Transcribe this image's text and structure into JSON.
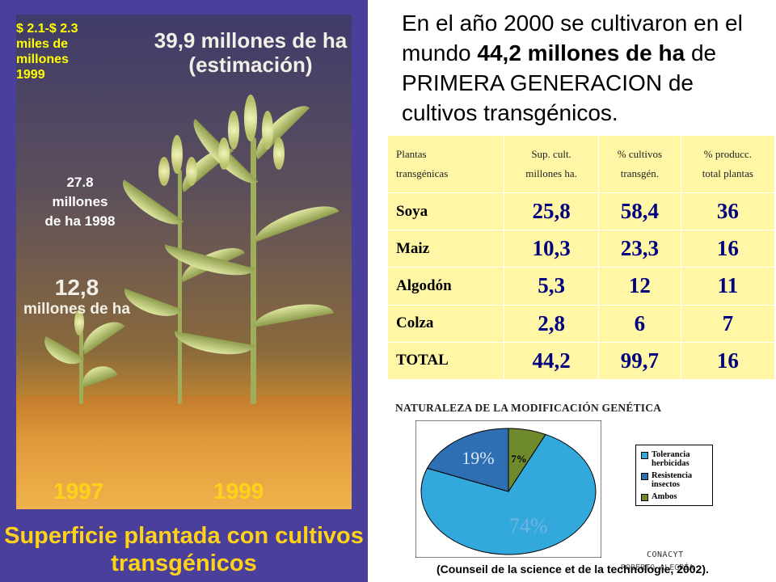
{
  "infographic": {
    "amount_text_lines": [
      "$ 2.1-$ 2.3",
      "miles de",
      "millones",
      "1999"
    ],
    "top_estimate_line1": "39,9 millones de ha",
    "top_estimate_line2": "(estimación)",
    "mid_1998_lines": [
      "27.8",
      "millones",
      "de ha 1998"
    ],
    "left_1997_line1": "12,8",
    "left_1997_line2": "millones de ha",
    "year_left": "1997",
    "year_right": "1999",
    "caption_line1": "Superficie plantada con cultivos",
    "caption_line2": "transgénicos"
  },
  "headline": {
    "part1": "En el año 2000 se cultivaron en el mundo ",
    "bold": "44,2 millones de ha",
    "part2": " de PRIMERA GENERACION de cultivos transgénicos."
  },
  "table": {
    "headers": [
      [
        "Plantas",
        "transgénicas"
      ],
      [
        "Sup. cult.",
        "millones ha."
      ],
      [
        "% cultivos",
        "transgén."
      ],
      [
        "% producc.",
        "total plantas"
      ]
    ],
    "rows": [
      {
        "name": "Soya",
        "sup": "25,8",
        "pct_cult": "58,4",
        "pct_prod": "36"
      },
      {
        "name": "Maiz",
        "sup": "10,3",
        "pct_cult": "23,3",
        "pct_prod": "16"
      },
      {
        "name": "Algodón",
        "sup": "5,3",
        "pct_cult": "12",
        "pct_prod": "11"
      },
      {
        "name": "Colza",
        "sup": "2,8",
        "pct_cult": "6",
        "pct_prod": "7"
      },
      {
        "name": "TOTAL",
        "sup": "44,2",
        "pct_cult": "99,7",
        "pct_prod": "16"
      }
    ]
  },
  "chart_data": {
    "type": "pie",
    "title": "NATURALEZA DE LA MODIFICACIÓN GENÉTICA",
    "categories": [
      "Tolerancia herbicidas",
      "Resistencia insectos",
      "Ambos"
    ],
    "values": [
      74,
      19,
      7
    ],
    "labels": [
      "74%",
      "19%",
      "7%"
    ],
    "colors": [
      "#33a8dd",
      "#2e6fb4",
      "#6f8a2c"
    ],
    "legend": {
      "placement": "right",
      "items": [
        {
          "label_line1": "Tolerancia",
          "label_line2": "herbicidas",
          "color": "#33a8dd"
        },
        {
          "label_line1": "Resistencia",
          "label_line2": "insectos",
          "color": "#2e6fb4"
        },
        {
          "label_line1": "Ambos",
          "label_line2": "",
          "color": "#6f8a2c"
        }
      ]
    }
  },
  "watermark_line1": "CONACYT",
  "watermark_line2": "ROBERTO ALEGRÍA",
  "source": "(Counseil de la science et de la technologie, 2002)."
}
